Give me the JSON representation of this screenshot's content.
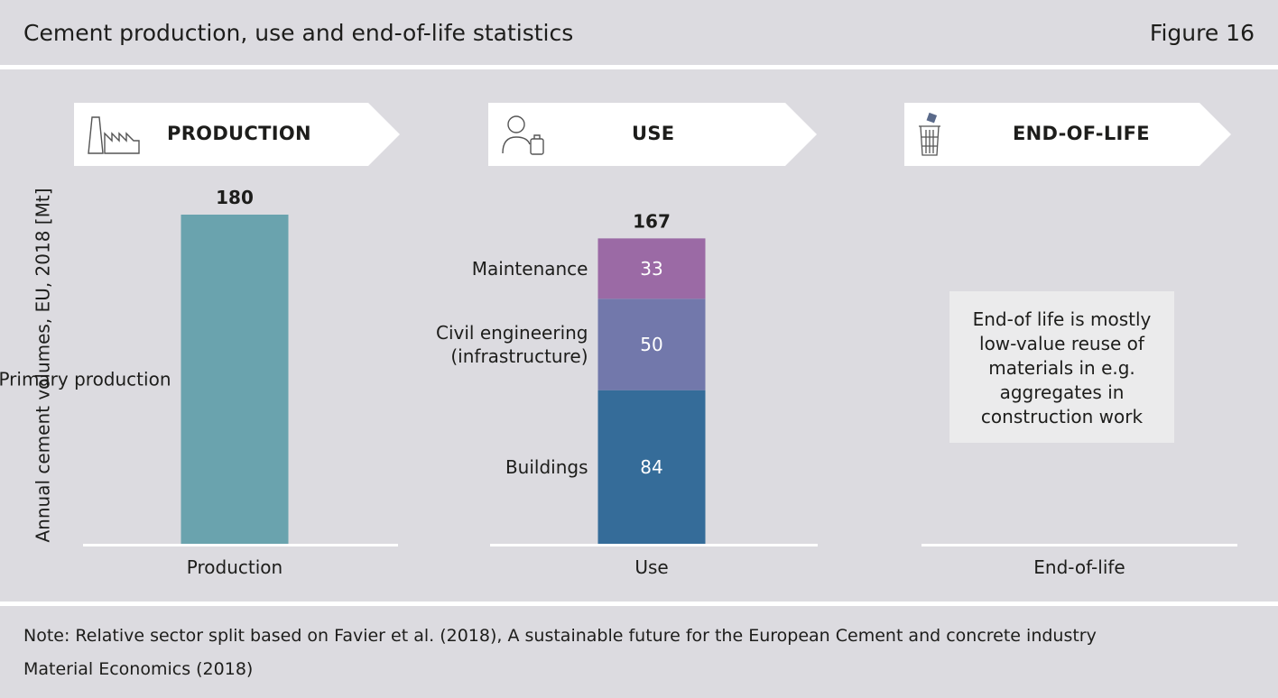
{
  "header": {
    "title": "Cement production, use and end-of-life statistics",
    "figure": "Figure 16"
  },
  "stages": [
    {
      "label": "PRODUCTION",
      "icon": "factory-icon"
    },
    {
      "label": "USE",
      "icon": "person-bag-icon"
    },
    {
      "label": "END-OF-LIFE",
      "icon": "trash-bin-icon"
    }
  ],
  "chart_data": {
    "type": "bar",
    "ylabel": "Annual cement volumes, EU, 2018 [Mt]",
    "categories": [
      "Production",
      "Use",
      "End-of-life"
    ],
    "bars": [
      {
        "category": "Production",
        "total": 180,
        "segments": [
          {
            "name": "Primary production",
            "value": 180,
            "color": "#6aa3ae",
            "show_value": false
          }
        ]
      },
      {
        "category": "Use",
        "total": 167,
        "segments": [
          {
            "name": "Buildings",
            "value": 84,
            "color": "#356c99",
            "show_value": true
          },
          {
            "name": "Civil engineering (infrastructure)",
            "value": 50,
            "color": "#7278ab",
            "show_value": true
          },
          {
            "name": "Maintenance",
            "value": 33,
            "color": "#9b6aa5",
            "show_value": true
          }
        ]
      },
      {
        "category": "End-of-life",
        "total": null,
        "segments": []
      }
    ],
    "annotation": "End-of life is mostly low-value reuse of materials in e.g. aggregates in construction work"
  },
  "notes": {
    "line1": "Note: Relative sector split based on Favier et al. (2018), A sustainable future for the European Cement and concrete industry",
    "line2": "Material Economics (2018)"
  },
  "colors": {
    "background": "#dcdbe0",
    "panel": "#ffffff",
    "note_box": "#ebebec"
  }
}
